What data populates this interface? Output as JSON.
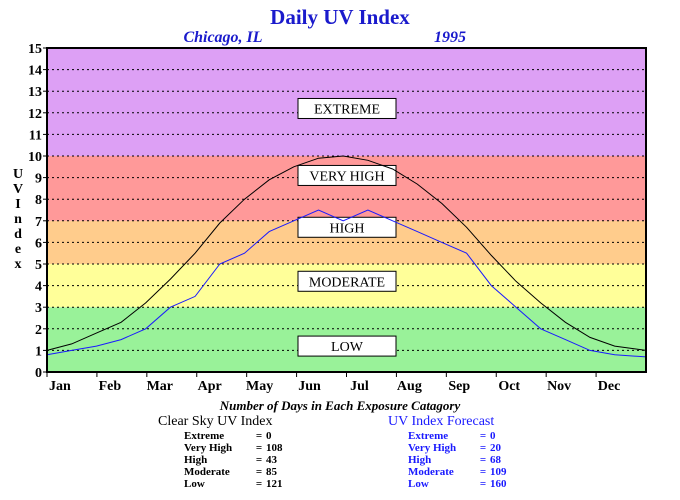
{
  "title": "Daily UV Index",
  "location": "Chicago, IL",
  "year": "1995",
  "colors": {
    "title": "#1a1acc",
    "low": "#99f299",
    "moderate": "#ffff99",
    "high": "#ffcc8c",
    "very_high": "#ff9999",
    "extreme": "#dda0f5",
    "clear_sky_line": "#000000",
    "forecast_line": "#1a1aff"
  },
  "chart_data": {
    "type": "line",
    "title": "Daily UV Index",
    "ylabel": "UV Index",
    "xlabel": "",
    "ylim": [
      0,
      15
    ],
    "yticks": [
      0,
      1,
      2,
      3,
      4,
      5,
      6,
      7,
      8,
      9,
      10,
      11,
      12,
      13,
      14,
      15
    ],
    "months": [
      "Jan",
      "Feb",
      "Mar",
      "Apr",
      "May",
      "Jun",
      "Jul",
      "Aug",
      "Sep",
      "Oct",
      "Nov",
      "Dec"
    ],
    "grid": true,
    "bands": [
      {
        "name": "LOW",
        "from": 0,
        "to": 3
      },
      {
        "name": "MODERATE",
        "from": 3,
        "to": 5
      },
      {
        "name": "HIGH",
        "from": 5,
        "to": 7
      },
      {
        "name": "VERY HIGH",
        "from": 7,
        "to": 10
      },
      {
        "name": "EXTREME",
        "from": 10,
        "to": 15
      }
    ],
    "band_labels": [
      {
        "text": "EXTREME",
        "y": 12.2
      },
      {
        "text": "VERY HIGH",
        "y": 9.1
      },
      {
        "text": "HIGH",
        "y": 6.7
      },
      {
        "text": "MODERATE",
        "y": 4.2
      },
      {
        "text": "LOW",
        "y": 1.2
      }
    ],
    "series": [
      {
        "key": "clear_sky",
        "x": [
          1,
          16,
          31,
          46,
          61,
          76,
          91,
          106,
          121,
          136,
          151,
          166,
          181,
          196,
          211,
          226,
          241,
          256,
          271,
          286,
          301,
          316,
          331,
          346,
          365
        ],
        "values": [
          1.0,
          1.3,
          1.8,
          2.3,
          3.2,
          4.3,
          5.5,
          6.9,
          8.0,
          8.9,
          9.5,
          9.9,
          10.0,
          9.8,
          9.4,
          8.7,
          7.8,
          6.7,
          5.4,
          4.2,
          3.2,
          2.3,
          1.6,
          1.2,
          1.0
        ]
      },
      {
        "key": "forecast",
        "x": [
          1,
          16,
          31,
          46,
          61,
          76,
          91,
          106,
          121,
          136,
          151,
          166,
          181,
          196,
          211,
          226,
          241,
          256,
          271,
          286,
          301,
          316,
          331,
          346,
          365
        ],
        "values": [
          0.8,
          1.0,
          1.2,
          1.5,
          2.0,
          3.0,
          3.5,
          5.0,
          5.5,
          6.5,
          7.0,
          7.5,
          7.0,
          7.5,
          7.0,
          6.5,
          6.0,
          5.5,
          4.0,
          3.0,
          2.0,
          1.5,
          1.0,
          0.8,
          0.7
        ]
      }
    ]
  },
  "summary": {
    "heading": "Number of Days in Each Exposure Catagory",
    "clear_sky": {
      "title": "Clear Sky UV Index",
      "rows": [
        {
          "label": "Extreme",
          "value": "0"
        },
        {
          "label": "Very High",
          "value": "108"
        },
        {
          "label": "High",
          "value": "43"
        },
        {
          "label": "Moderate",
          "value": "85"
        },
        {
          "label": "Low",
          "value": "121"
        }
      ]
    },
    "forecast": {
      "title": "UV Index Forecast",
      "rows": [
        {
          "label": "Extreme",
          "value": "0"
        },
        {
          "label": "Very High",
          "value": "20"
        },
        {
          "label": "High",
          "value": "68"
        },
        {
          "label": "Moderate",
          "value": "109"
        },
        {
          "label": "Low",
          "value": "160"
        }
      ]
    }
  }
}
